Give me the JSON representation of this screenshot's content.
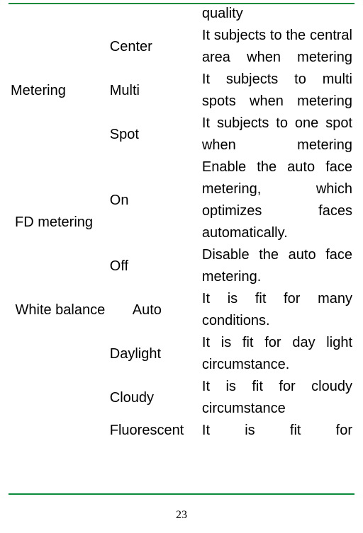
{
  "page_number": "23",
  "rule_color": "#0a8a3a",
  "orphan_prev_desc": "quality",
  "rows": [
    {
      "category": "Metering",
      "category_rowspan": 3,
      "options": [
        {
          "opt": "Center",
          "desc": "It subjects to the central area when metering",
          "single": false,
          "opt_class": ""
        },
        {
          "opt": "Multi",
          "desc": "It subjects to multi spots when metering",
          "single": false,
          "opt_class": ""
        },
        {
          "opt": "Spot",
          "desc": "It subjects to one spot when metering",
          "single": false,
          "opt_class": ""
        }
      ],
      "cat_class": "cat"
    },
    {
      "category": "FD metering",
      "category_rowspan": 2,
      "options": [
        {
          "opt": "On",
          "desc": "Enable the auto face metering, which optimizes faces automatically.",
          "single": false,
          "opt_class": ""
        },
        {
          "opt": "Off",
          "desc": "Disable the auto face metering.",
          "single": false,
          "opt_class": ""
        }
      ],
      "cat_class": "cat indent1"
    },
    {
      "category": "White balance",
      "category_rowspan": 1,
      "options": [
        {
          "opt": "Auto",
          "desc": "It is fit for many conditions.",
          "single": false,
          "opt_class": "indent"
        }
      ],
      "cat_class": "cat center",
      "trailing": [
        {
          "opt": "Daylight",
          "desc": "It is fit for day light circumstance.",
          "single": false,
          "opt_class": ""
        },
        {
          "opt": "Cloudy",
          "desc": "It is fit for cloudy circumstance",
          "single": false,
          "opt_class": ""
        },
        {
          "opt": "Fluorescent",
          "desc": "It is fit for",
          "single": false,
          "opt_class": ""
        }
      ]
    }
  ]
}
